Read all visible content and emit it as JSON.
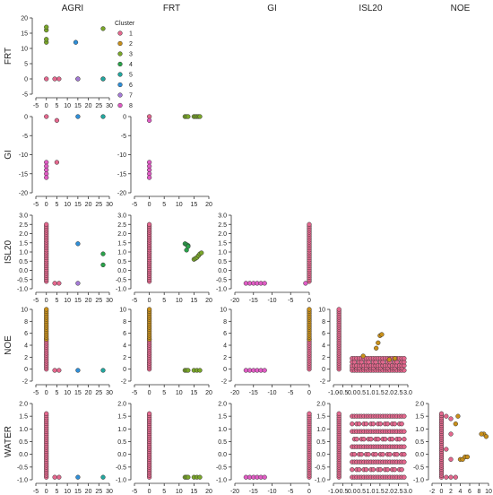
{
  "chart_data": {
    "type": "scatter",
    "variables": [
      "AGRI",
      "FRT",
      "GI",
      "ISL20",
      "NOE"
    ],
    "row_variables": [
      "FRT",
      "GI",
      "ISL20",
      "NOE",
      "WATER"
    ],
    "axis_ranges": {
      "AGRI": {
        "lim": [
          -5,
          30
        ],
        "ticks": [
          "-5",
          "0",
          "5",
          "10",
          "15",
          "20",
          "25",
          "30"
        ]
      },
      "FRT": {
        "lim": [
          -5,
          20
        ],
        "ticks": [
          "-5",
          "0",
          "5",
          "10",
          "15",
          "20"
        ]
      },
      "GI": {
        "lim": [
          -20,
          0
        ],
        "ticks": [
          "-20",
          "-15",
          "-10",
          "-5",
          "0"
        ]
      },
      "ISL20": {
        "lim": [
          -1.0,
          3.0
        ],
        "ticks": [
          "-1.0",
          "-0.5",
          "0.0",
          "0.5",
          "1.0",
          "1.5",
          "2.0",
          "2.5",
          "3.0"
        ]
      },
      "NOE": {
        "lim": [
          -2,
          10
        ],
        "ticks": [
          "-2",
          "0",
          "2",
          "4",
          "6",
          "8",
          "10"
        ]
      },
      "WATER": {
        "lim": [
          -1.0,
          2.0
        ],
        "ticks": [
          "-1.0",
          "-0.5",
          "0.0",
          "0.5",
          "1.0",
          "1.5",
          "2.0"
        ]
      }
    },
    "legend": {
      "title": "Cluster",
      "placement": "top-right of first panel",
      "items": [
        {
          "label": "1",
          "color": "#e4688e"
        },
        {
          "label": "2",
          "color": "#c9901a"
        },
        {
          "label": "3",
          "color": "#7aa62a"
        },
        {
          "label": "4",
          "color": "#2aa24a"
        },
        {
          "label": "5",
          "color": "#22a69e"
        },
        {
          "label": "6",
          "color": "#2f8fd8"
        },
        {
          "label": "7",
          "color": "#a47ad6"
        },
        {
          "label": "8",
          "color": "#e05cc4"
        }
      ]
    },
    "panels": [
      {
        "id": "frt-agri",
        "x": "AGRI",
        "y": "FRT",
        "series": [
          {
            "cluster": "1",
            "points": [
              [
                0,
                0
              ],
              [
                4,
                0
              ],
              [
                6,
                0
              ],
              [
                15,
                0
              ],
              [
                27,
                0
              ]
            ]
          },
          {
            "cluster": "3",
            "points": [
              [
                0,
                12
              ],
              [
                0,
                13
              ],
              [
                0,
                16
              ],
              [
                0,
                17
              ],
              [
                27,
                16.5
              ]
            ]
          },
          {
            "cluster": "5",
            "points": [
              [
                27,
                0
              ]
            ]
          },
          {
            "cluster": "6",
            "points": [
              [
                14,
                12
              ]
            ]
          },
          {
            "cluster": "7",
            "points": [
              [
                15,
                0
              ]
            ]
          }
        ]
      },
      {
        "id": "gi-agri",
        "x": "AGRI",
        "y": "GI",
        "series": [
          {
            "cluster": "1",
            "points": [
              [
                0,
                0
              ],
              [
                5,
                -1
              ],
              [
                5,
                -12
              ]
            ]
          },
          {
            "cluster": "5",
            "points": [
              [
                27,
                0
              ]
            ]
          },
          {
            "cluster": "6",
            "points": [
              [
                15,
                0
              ]
            ]
          },
          {
            "cluster": "8",
            "points": [
              [
                0,
                -12
              ],
              [
                0,
                -13
              ],
              [
                0,
                -14
              ],
              [
                0,
                -15
              ],
              [
                0,
                -16
              ]
            ]
          }
        ]
      },
      {
        "id": "gi-frt",
        "x": "FRT",
        "y": "GI",
        "series": [
          {
            "cluster": "1",
            "points": [
              [
                0,
                0
              ]
            ]
          },
          {
            "cluster": "3",
            "points": [
              [
                12,
                0
              ],
              [
                12.5,
                0
              ],
              [
                13,
                0
              ],
              [
                15,
                0
              ],
              [
                15.5,
                0
              ],
              [
                16,
                0
              ],
              [
                16.5,
                0
              ],
              [
                17,
                0
              ]
            ]
          },
          {
            "cluster": "8",
            "points": [
              [
                0,
                -1
              ],
              [
                0,
                -12
              ],
              [
                0,
                -13
              ],
              [
                0,
                -14
              ],
              [
                0,
                -15
              ],
              [
                0,
                -16
              ]
            ]
          }
        ]
      },
      {
        "id": "isl20-agri",
        "x": "AGRI",
        "y": "ISL20",
        "series": [
          {
            "cluster": "1",
            "column": {
              "x": 0,
              "y_from": -0.6,
              "y_to": 2.5
            }
          },
          {
            "cluster": "1",
            "points": [
              [
                4,
                -0.7
              ],
              [
                6,
                -0.7
              ]
            ]
          },
          {
            "cluster": "4",
            "points": [
              [
                27,
                0.9
              ],
              [
                27,
                0.3
              ]
            ]
          },
          {
            "cluster": "6",
            "points": [
              [
                15,
                1.45
              ]
            ]
          },
          {
            "cluster": "7",
            "points": [
              [
                15,
                -0.7
              ]
            ]
          }
        ]
      },
      {
        "id": "isl20-frt",
        "x": "FRT",
        "y": "ISL20",
        "series": [
          {
            "cluster": "1",
            "column": {
              "x": 0,
              "y_from": -0.6,
              "y_to": 2.5
            }
          },
          {
            "cluster": "3",
            "points": [
              [
                15,
                0.6
              ],
              [
                15.5,
                0.65
              ],
              [
                16,
                0.7
              ],
              [
                16.5,
                0.8
              ],
              [
                17,
                0.9
              ],
              [
                17.5,
                0.95
              ]
            ]
          },
          {
            "cluster": "4",
            "points": [
              [
                12,
                1.45
              ],
              [
                12.5,
                1.4
              ],
              [
                13,
                1.35
              ],
              [
                12.5,
                1.1
              ],
              [
                13,
                1.3
              ]
            ]
          }
        ]
      },
      {
        "id": "isl20-gi",
        "x": "GI",
        "y": "ISL20",
        "series": [
          {
            "cluster": "1",
            "column": {
              "x": 0,
              "y_from": -0.6,
              "y_to": 2.5
            }
          },
          {
            "cluster": "8",
            "points": [
              [
                -17,
                -0.7
              ],
              [
                -16,
                -0.7
              ],
              [
                -15,
                -0.7
              ],
              [
                -14,
                -0.7
              ],
              [
                -13,
                -0.7
              ],
              [
                -12,
                -0.7
              ],
              [
                -1,
                -0.7
              ]
            ]
          }
        ]
      },
      {
        "id": "noe-agri",
        "x": "AGRI",
        "y": "NOE",
        "series": [
          {
            "cluster": "1",
            "column": {
              "x": 0,
              "y_from": 0,
              "y_to": 5
            }
          },
          {
            "cluster": "2",
            "column": {
              "x": 0,
              "y_from": 5,
              "y_to": 10
            }
          },
          {
            "cluster": "1",
            "points": [
              [
                4,
                -0.2
              ],
              [
                6,
                -0.2
              ]
            ]
          },
          {
            "cluster": "5",
            "points": [
              [
                27,
                -0.2
              ]
            ]
          },
          {
            "cluster": "6",
            "points": [
              [
                15,
                -0.2
              ]
            ]
          }
        ]
      },
      {
        "id": "noe-frt",
        "x": "FRT",
        "y": "NOE",
        "series": [
          {
            "cluster": "1",
            "column": {
              "x": 0,
              "y_from": 0,
              "y_to": 5
            }
          },
          {
            "cluster": "2",
            "column": {
              "x": 0,
              "y_from": 5,
              "y_to": 10
            }
          },
          {
            "cluster": "3",
            "points": [
              [
                12,
                -0.2
              ],
              [
                12.5,
                -0.2
              ],
              [
                13,
                -0.2
              ],
              [
                15,
                -0.2
              ],
              [
                16,
                -0.2
              ],
              [
                17,
                -0.2
              ]
            ]
          }
        ]
      },
      {
        "id": "noe-gi",
        "x": "GI",
        "y": "NOE",
        "series": [
          {
            "cluster": "1",
            "column": {
              "x": 0,
              "y_from": 0,
              "y_to": 5
            }
          },
          {
            "cluster": "2",
            "column": {
              "x": 0,
              "y_from": 5,
              "y_to": 10
            }
          },
          {
            "cluster": "8",
            "points": [
              [
                -17,
                -0.2
              ],
              [
                -16,
                -0.2
              ],
              [
                -15,
                -0.2
              ],
              [
                -14,
                -0.2
              ],
              [
                -13,
                -0.2
              ],
              [
                -12,
                -0.2
              ]
            ]
          }
        ]
      },
      {
        "id": "noe-isl20",
        "x": "ISL20",
        "y": "NOE",
        "series": [
          {
            "cluster": "1",
            "column": {
              "x": -0.7,
              "y_from": 0,
              "y_to": 10
            }
          },
          {
            "cluster": "1",
            "band": {
              "x_from": 0.0,
              "x_to": 2.8,
              "y_values": [
                -0.2,
                0.2,
                0.6,
                1.2,
                1.8
              ]
            }
          },
          {
            "cluster": "2",
            "points": [
              [
                0.6,
                2.2
              ],
              [
                1.3,
                3.5
              ],
              [
                1.4,
                4.4
              ],
              [
                1.5,
                5.6
              ],
              [
                1.6,
                5.8
              ],
              [
                2.0,
                1.6
              ],
              [
                2.3,
                1.8
              ]
            ]
          }
        ]
      },
      {
        "id": "water-agri",
        "x": "AGRI",
        "y": "WATER",
        "series": [
          {
            "cluster": "1",
            "column": {
              "x": 0,
              "y_from": -0.9,
              "y_to": 1.6
            }
          },
          {
            "cluster": "1",
            "points": [
              [
                4,
                -0.9
              ],
              [
                6,
                -0.9
              ]
            ]
          },
          {
            "cluster": "5",
            "points": [
              [
                27,
                -0.9
              ]
            ]
          },
          {
            "cluster": "6",
            "points": [
              [
                15,
                -0.9
              ]
            ]
          }
        ]
      },
      {
        "id": "water-frt",
        "x": "FRT",
        "y": "WATER",
        "series": [
          {
            "cluster": "1",
            "column": {
              "x": 0,
              "y_from": -0.9,
              "y_to": 1.6
            }
          },
          {
            "cluster": "3",
            "points": [
              [
                12,
                -0.9
              ],
              [
                12.5,
                -0.9
              ],
              [
                13,
                -0.9
              ],
              [
                15,
                -0.9
              ],
              [
                16,
                -0.9
              ],
              [
                17,
                -0.9
              ]
            ]
          }
        ]
      },
      {
        "id": "water-gi",
        "x": "GI",
        "y": "WATER",
        "series": [
          {
            "cluster": "1",
            "column": {
              "x": 0,
              "y_from": -0.9,
              "y_to": 1.6
            }
          },
          {
            "cluster": "8",
            "points": [
              [
                -17,
                -0.9
              ],
              [
                -16,
                -0.9
              ],
              [
                -15,
                -0.9
              ],
              [
                -14,
                -0.9
              ],
              [
                -13,
                -0.9
              ],
              [
                -12,
                -0.9
              ]
            ]
          }
        ]
      },
      {
        "id": "water-isl20",
        "x": "ISL20",
        "y": "WATER",
        "series": [
          {
            "cluster": "1",
            "column": {
              "x": -0.7,
              "y_from": -0.9,
              "y_to": 1.6
            }
          },
          {
            "cluster": "1",
            "band": {
              "x_from": 0.0,
              "x_to": 2.8,
              "y_values": [
                -0.9,
                -0.6,
                -0.3,
                0.0,
                0.3,
                0.6,
                0.9,
                1.2,
                1.5
              ]
            }
          }
        ]
      },
      {
        "id": "water-noe",
        "x": "NOE",
        "y": "WATER",
        "series": [
          {
            "cluster": "1",
            "column": {
              "x": 0,
              "y_from": -0.9,
              "y_to": 1.6
            }
          },
          {
            "cluster": "1",
            "points": [
              [
                1,
                -0.9
              ],
              [
                2,
                -0.9
              ],
              [
                3,
                -0.9
              ],
              [
                1,
                1.5
              ],
              [
                2,
                1.4
              ],
              [
                2,
                0.8
              ],
              [
                1,
                0.2
              ],
              [
                2,
                -0.2
              ]
            ]
          },
          {
            "cluster": "2",
            "points": [
              [
                3,
                1.2
              ],
              [
                3.5,
                1.5
              ],
              [
                4,
                -0.2
              ],
              [
                4.5,
                -0.2
              ],
              [
                5,
                -0.1
              ],
              [
                5.5,
                -0.1
              ],
              [
                9,
                0.8
              ],
              [
                9.5,
                0.7
              ],
              [
                8.5,
                0.8
              ]
            ]
          }
        ]
      }
    ]
  }
}
